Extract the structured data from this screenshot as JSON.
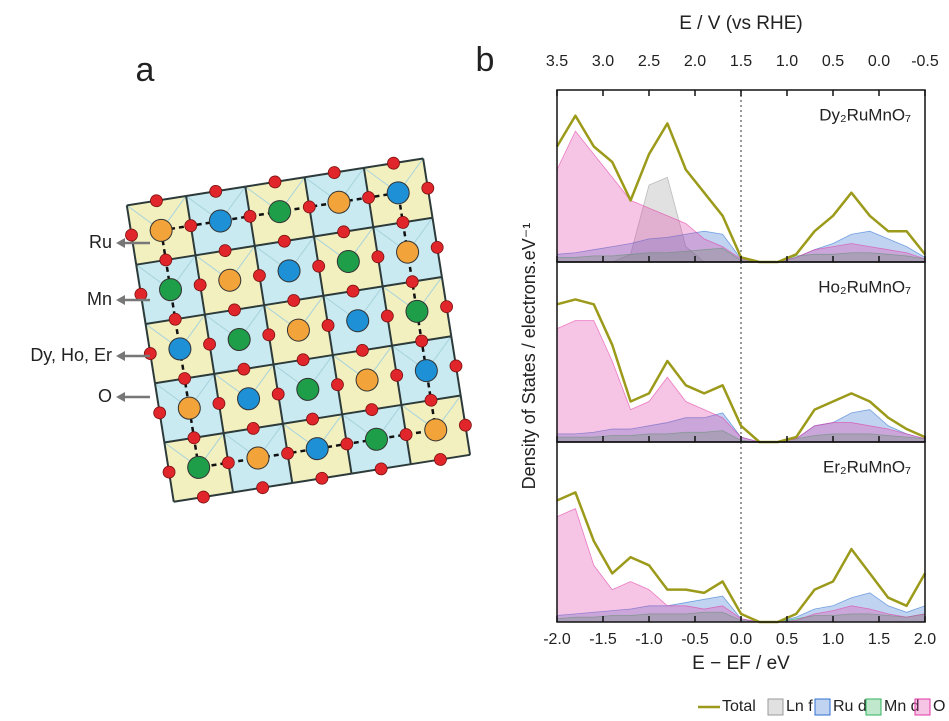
{
  "panel_a": {
    "label": "a",
    "atoms": [
      {
        "label": "Ru",
        "color": "#f2a33a"
      },
      {
        "label": "Mn",
        "color": "#1e90d6"
      },
      {
        "label": "Dy, Ho, Er",
        "color": "#1f9e4a"
      },
      {
        "label": "O",
        "color": "#e0262a"
      }
    ]
  },
  "panel_b_label": "b",
  "chart_data": [
    {
      "type": "dos",
      "title": "Dy₂RuMnO₇",
      "x2label": "E / V (vs RHE)",
      "xlim": [
        -2,
        2
      ],
      "xticks": [
        -2,
        -1.5,
        -1,
        -0.5,
        0,
        0.5,
        1,
        1.5,
        2
      ],
      "x2lim": [
        3.5,
        -0.5
      ],
      "x2ticks": [
        3.5,
        {
          "value": 3,
          "label": "3.0"
        },
        2.5,
        {
          "value": 2,
          "label": "2.0"
        },
        1.5,
        {
          "value": 1,
          "label": "1.0"
        },
        0.5,
        {
          "value": 0,
          "label": "0.0"
        },
        -0.5
      ],
      "ylim": [
        0,
        10
      ],
      "x": [
        -2,
        -1.8,
        -1.6,
        -1.4,
        -1.2,
        -1,
        -0.8,
        -0.6,
        -0.4,
        -0.2,
        0,
        0.2,
        0.4,
        0.6,
        0.8,
        1,
        1.2,
        1.4,
        1.6,
        1.8,
        2
      ],
      "series": [
        {
          "name": "Total",
          "color": "#9c9a1a",
          "style": "line",
          "values": [
            7.5,
            9.5,
            7.5,
            6.5,
            4,
            7,
            9,
            6,
            4.5,
            3,
            0.3,
            0,
            0,
            0.5,
            2,
            3,
            4.5,
            3,
            2,
            2,
            0.5
          ]
        },
        {
          "name": "Ln f",
          "color": "#9a9a9a",
          "style": "area",
          "values": [
            0,
            0,
            0,
            0,
            0.5,
            5,
            5.5,
            1,
            0,
            0,
            0,
            0,
            0,
            0,
            0,
            0,
            0,
            0,
            0,
            0,
            0
          ]
        },
        {
          "name": "Ru d",
          "color": "#2f6fd0",
          "style": "area",
          "values": [
            0.5,
            0.6,
            0.8,
            1,
            1.2,
            1.5,
            1.6,
            1.8,
            2,
            1.8,
            0.2,
            0,
            0,
            0.3,
            0.8,
            1.2,
            1.8,
            2,
            1.5,
            1,
            0.3
          ]
        },
        {
          "name": "Mn d",
          "color": "#2fb35a",
          "style": "area",
          "values": [
            0.3,
            0.3,
            0.4,
            0.4,
            0.5,
            0.6,
            0.6,
            0.7,
            0.8,
            0.9,
            0.1,
            0,
            0,
            0.4,
            0.5,
            0.5,
            0.6,
            0.6,
            0.5,
            0.4,
            0.2
          ]
        },
        {
          "name": "O p",
          "color": "#e23aa6",
          "style": "area",
          "values": [
            6,
            8.5,
            7,
            5.5,
            4,
            3.5,
            3,
            2.5,
            1.5,
            1,
            0.2,
            0,
            0,
            0.3,
            0.8,
            1,
            1.2,
            1,
            0.8,
            0.6,
            0.2
          ]
        }
      ]
    },
    {
      "type": "dos",
      "title": "Ho₂RuMnO₇",
      "ylabel": "Density of States / electrons.eV⁻¹",
      "xlim": [
        -2,
        2
      ],
      "xticks": [
        -2,
        -1.5,
        -1,
        -0.5,
        0,
        0.5,
        1,
        1.5,
        2
      ],
      "ylim": [
        0,
        10
      ],
      "x": [
        -2,
        -1.8,
        -1.6,
        -1.4,
        -1.2,
        -1,
        -0.8,
        -0.6,
        -0.4,
        -0.2,
        0,
        0.2,
        0.4,
        0.6,
        0.8,
        1,
        1.2,
        1.4,
        1.6,
        1.8,
        2
      ],
      "series": [
        {
          "name": "Total",
          "color": "#9c9a1a",
          "style": "line",
          "values": [
            8.5,
            8.8,
            8.5,
            6,
            2.5,
            3,
            5,
            3.5,
            3,
            3.5,
            1,
            0,
            0,
            0.3,
            2,
            2.5,
            3,
            2.5,
            1.5,
            0.8,
            0.3
          ]
        },
        {
          "name": "Ru d",
          "color": "#2f6fd0",
          "style": "area",
          "values": [
            0.5,
            0.5,
            0.6,
            0.8,
            0.8,
            1,
            1.2,
            1.5,
            1.5,
            1.8,
            0.3,
            0,
            0,
            0.2,
            1,
            1.2,
            1.8,
            2,
            1,
            0.5,
            0.2
          ]
        },
        {
          "name": "Mn d",
          "color": "#2fb35a",
          "style": "area",
          "values": [
            0.3,
            0.3,
            0.3,
            0.4,
            0.4,
            0.5,
            0.5,
            0.6,
            0.6,
            0.7,
            0.1,
            0,
            0,
            0.2,
            0.4,
            0.5,
            0.5,
            0.5,
            0.4,
            0.3,
            0.2
          ]
        },
        {
          "name": "O p",
          "color": "#e23aa6",
          "style": "area",
          "values": [
            7,
            7.5,
            7.5,
            5,
            2,
            2.5,
            4,
            2.5,
            2,
            1.5,
            0.3,
            0,
            0,
            0.2,
            1,
            1.2,
            1.2,
            1,
            0.8,
            0.5,
            0.2
          ]
        }
      ]
    },
    {
      "type": "dos",
      "title": "Er₂RuMnO₇",
      "xlabel": "E − EF / eV",
      "xlim": [
        -2,
        2
      ],
      "xticks": [
        {
          "value": -2,
          "label": "-2.0"
        },
        -1.5,
        {
          "value": -1,
          "label": "-1.0"
        },
        -0.5,
        {
          "value": 0,
          "label": "0.0"
        },
        0.5,
        {
          "value": 1,
          "label": "1.0"
        },
        1.5,
        {
          "value": 2,
          "label": "2.0"
        }
      ],
      "ylim": [
        0,
        10
      ],
      "x": [
        -2,
        -1.8,
        -1.6,
        -1.4,
        -1.2,
        -1,
        -0.8,
        -0.6,
        -0.4,
        -0.2,
        0,
        0.2,
        0.4,
        0.6,
        0.8,
        1,
        1.2,
        1.4,
        1.6,
        1.8,
        2
      ],
      "series": [
        {
          "name": "Total",
          "color": "#9c9a1a",
          "style": "line",
          "values": [
            7.5,
            8,
            5,
            3,
            4,
            3.5,
            2,
            2,
            1.8,
            2.5,
            0.5,
            0,
            0,
            0.5,
            2,
            2.5,
            4.5,
            3,
            1.5,
            1,
            3
          ]
        },
        {
          "name": "Ru d",
          "color": "#2f6fd0",
          "style": "area",
          "values": [
            0.4,
            0.5,
            0.6,
            0.7,
            0.8,
            1,
            1,
            1.2,
            1.4,
            1.6,
            0.2,
            0,
            0,
            0.3,
            0.8,
            1,
            1.5,
            1.8,
            1,
            0.6,
            1
          ]
        },
        {
          "name": "Mn d",
          "color": "#2fb35a",
          "style": "area",
          "values": [
            0.2,
            0.3,
            0.3,
            0.4,
            0.4,
            0.5,
            0.5,
            0.5,
            0.6,
            0.6,
            0.1,
            0,
            0,
            0.2,
            0.4,
            0.4,
            0.5,
            0.5,
            0.4,
            0.3,
            0.5
          ]
        },
        {
          "name": "O p",
          "color": "#e23aa6",
          "style": "area",
          "values": [
            6.5,
            7,
            3.5,
            2,
            2.5,
            2,
            1,
            1,
            0.8,
            1,
            0.2,
            0,
            0,
            0.1,
            0.5,
            0.7,
            1,
            0.8,
            0.5,
            0.3,
            0.5
          ]
        }
      ]
    }
  ]
}
